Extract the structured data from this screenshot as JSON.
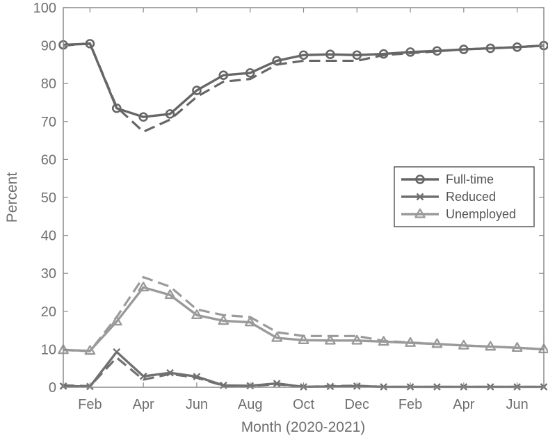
{
  "chart_data": {
    "type": "line",
    "xlabel": "Month (2020-2021)",
    "ylabel": "Percent",
    "ylim": [
      0,
      100
    ],
    "xlim": [
      1,
      19
    ],
    "x": [
      1,
      2,
      3,
      4,
      5,
      6,
      7,
      8,
      9,
      10,
      11,
      12,
      13,
      14,
      15,
      16,
      17,
      18,
      19
    ],
    "x_ticks": [
      {
        "x": 2,
        "label": "Feb"
      },
      {
        "x": 4,
        "label": "Apr"
      },
      {
        "x": 6,
        "label": "Jun"
      },
      {
        "x": 8,
        "label": "Aug"
      },
      {
        "x": 10,
        "label": "Oct"
      },
      {
        "x": 12,
        "label": "Dec"
      },
      {
        "x": 14,
        "label": "Feb"
      },
      {
        "x": 16,
        "label": "Apr"
      },
      {
        "x": 18,
        "label": "Jun"
      }
    ],
    "y_ticks": [
      0,
      10,
      20,
      30,
      40,
      50,
      60,
      70,
      80,
      90,
      100
    ],
    "grid": false,
    "legend_position": "right-middle",
    "series": [
      {
        "name": "Full-time",
        "marker": "circle",
        "color": "#666666",
        "values": [
          90.2,
          90.5,
          73.5,
          71.2,
          72.0,
          78.2,
          82.2,
          82.8,
          86.0,
          87.5,
          87.7,
          87.5,
          87.8,
          88.3,
          88.6,
          89.0,
          89.3,
          89.6,
          90.0
        ],
        "dashed_values": [
          90.0,
          90.6,
          73.8,
          67.3,
          70.5,
          76.5,
          80.5,
          81.2,
          85.0,
          86.0,
          86.0,
          86.0,
          87.5,
          88.0,
          88.5,
          89.0,
          89.3,
          89.6,
          90.0
        ]
      },
      {
        "name": "Reduced",
        "marker": "x",
        "color": "#707070",
        "values": [
          0.3,
          0.2,
          9.3,
          2.9,
          3.8,
          2.8,
          0.5,
          0.4,
          1.0,
          0.1,
          0.2,
          0.3,
          0.1,
          0.1,
          0.1,
          0.1,
          0.1,
          0.1,
          0.1
        ],
        "dashed_values": [
          0.5,
          0.3,
          7.8,
          2.0,
          3.5,
          2.5,
          0.4,
          0.3,
          0.8,
          0.1,
          0.3,
          0.4,
          0.1,
          0.1,
          0.1,
          0.1,
          0.1,
          0.1,
          0.1
        ]
      },
      {
        "name": "Unemployed",
        "marker": "triangle",
        "color": "#9a9a9a",
        "values": [
          9.8,
          9.6,
          17.3,
          26.3,
          24.3,
          19.0,
          17.5,
          17.1,
          13.0,
          12.4,
          12.3,
          12.3,
          12.0,
          11.7,
          11.4,
          11.0,
          10.7,
          10.4,
          10.0
        ],
        "dashed_values": [
          9.8,
          9.5,
          18.5,
          29.0,
          26.5,
          20.5,
          19.0,
          18.5,
          14.5,
          13.5,
          13.5,
          13.5,
          12.2,
          11.8,
          11.4,
          11.0,
          10.7,
          10.4,
          10.0
        ]
      }
    ]
  }
}
